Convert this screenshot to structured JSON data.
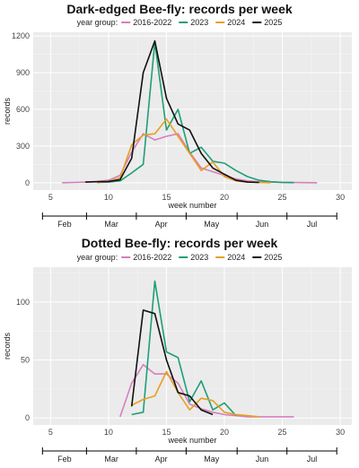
{
  "chart_data": [
    {
      "type": "line",
      "title": "Dark-edged Bee-fly: records per week",
      "legend_title": "year group:",
      "legend_position": "top",
      "xlabel": "week number",
      "ylabel": "records",
      "xlim": [
        3.5,
        31
      ],
      "ylim": [
        -60,
        1230
      ],
      "x_ticks": [
        5,
        10,
        15,
        20,
        25,
        30
      ],
      "y_ticks": [
        0,
        300,
        600,
        900,
        1200
      ],
      "grid": true,
      "months": [
        {
          "label": "Feb",
          "start": 4.3,
          "end": 8.1
        },
        {
          "label": "Mar",
          "start": 8.1,
          "end": 12.4
        },
        {
          "label": "Apr",
          "start": 12.4,
          "end": 16.7
        },
        {
          "label": "May",
          "start": 16.7,
          "end": 21.1
        },
        {
          "label": "Jun",
          "start": 21.1,
          "end": 25.4
        },
        {
          "label": "Jul",
          "start": 25.4,
          "end": 29.7
        }
      ],
      "series": [
        {
          "name": "2016-2022",
          "color": "#d67fbd",
          "x": [
            6,
            7,
            8,
            9,
            10,
            11,
            12,
            13,
            14,
            15,
            16,
            17,
            18,
            19,
            20,
            21,
            22,
            23,
            24,
            25,
            26,
            27,
            28
          ],
          "y": [
            0,
            2,
            5,
            10,
            20,
            60,
            250,
            400,
            350,
            380,
            400,
            250,
            120,
            90,
            60,
            30,
            15,
            8,
            5,
            3,
            2,
            1,
            0
          ]
        },
        {
          "name": "2023",
          "color": "#1f9e77",
          "x": [
            9,
            10,
            11,
            12,
            13,
            14,
            15,
            16,
            17,
            18,
            19,
            20,
            21,
            22,
            23,
            24,
            25,
            26
          ],
          "y": [
            2,
            5,
            15,
            80,
            150,
            1150,
            430,
            600,
            240,
            290,
            175,
            160,
            100,
            50,
            20,
            8,
            3,
            1
          ]
        },
        {
          "name": "2024",
          "color": "#e6a020",
          "x": [
            9,
            10,
            11,
            12,
            13,
            14,
            15,
            16,
            17,
            18,
            19,
            20,
            21,
            22,
            23,
            24
          ],
          "y": [
            2,
            10,
            40,
            310,
            390,
            400,
            520,
            380,
            240,
            100,
            170,
            50,
            15,
            5,
            2,
            0
          ]
        },
        {
          "name": "2025",
          "color": "#111111",
          "x": [
            8,
            9,
            10,
            11,
            12,
            13,
            14,
            15,
            16,
            17,
            18,
            19,
            20,
            21,
            22,
            23
          ],
          "y": [
            5,
            8,
            10,
            25,
            200,
            900,
            1160,
            690,
            480,
            430,
            240,
            120,
            70,
            20,
            5,
            2
          ]
        }
      ]
    },
    {
      "type": "line",
      "title": "Dotted Bee-fly: records per week",
      "legend_title": "year group:",
      "legend_position": "top",
      "xlabel": "week number",
      "ylabel": "records",
      "xlim": [
        3.5,
        31
      ],
      "ylim": [
        -6,
        130
      ],
      "x_ticks": [
        5,
        10,
        15,
        20,
        25,
        30
      ],
      "y_ticks": [
        0,
        50,
        100
      ],
      "grid": true,
      "months": [
        {
          "label": "Feb",
          "start": 4.3,
          "end": 8.1
        },
        {
          "label": "Mar",
          "start": 8.1,
          "end": 12.4
        },
        {
          "label": "Apr",
          "start": 12.4,
          "end": 16.7
        },
        {
          "label": "May",
          "start": 16.7,
          "end": 21.1
        },
        {
          "label": "Jun",
          "start": 21.1,
          "end": 25.4
        },
        {
          "label": "Jul",
          "start": 25.4,
          "end": 29.7
        }
      ],
      "series": [
        {
          "name": "2016-2022",
          "color": "#d67fbd",
          "x": [
            11,
            12,
            13,
            14,
            15,
            16,
            17,
            18,
            19,
            20,
            21,
            22,
            23,
            24,
            25,
            26
          ],
          "y": [
            1,
            30,
            46,
            38,
            38,
            30,
            12,
            8,
            5,
            3,
            2,
            1,
            1,
            1,
            1,
            1
          ]
        },
        {
          "name": "2023",
          "color": "#1f9e77",
          "x": [
            12,
            13,
            14,
            15,
            16,
            17,
            18,
            19,
            20,
            21
          ],
          "y": [
            3,
            5,
            118,
            57,
            52,
            14,
            32,
            7,
            13,
            2
          ]
        },
        {
          "name": "2024",
          "color": "#e6a020",
          "x": [
            12,
            13,
            14,
            15,
            16,
            17,
            18,
            19,
            20,
            21,
            22,
            23
          ],
          "y": [
            11,
            16,
            19,
            40,
            22,
            7,
            17,
            15,
            5,
            3,
            2,
            1
          ]
        },
        {
          "name": "2025",
          "color": "#111111",
          "x": [
            12,
            13,
            14,
            15,
            16,
            17,
            18,
            19
          ],
          "y": [
            10,
            93,
            90,
            50,
            22,
            19,
            7,
            3
          ]
        }
      ]
    }
  ]
}
